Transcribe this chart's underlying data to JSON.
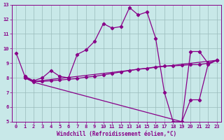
{
  "xlabel": "Windchill (Refroidissement éolien,°C)",
  "xlim": [
    -0.5,
    23.5
  ],
  "ylim": [
    5,
    13
  ],
  "xticks": [
    0,
    1,
    2,
    3,
    4,
    5,
    6,
    7,
    8,
    9,
    10,
    11,
    12,
    13,
    14,
    15,
    16,
    17,
    18,
    19,
    20,
    21,
    22,
    23
  ],
  "yticks": [
    5,
    6,
    7,
    8,
    9,
    10,
    11,
    12,
    13
  ],
  "bg_color": "#c8e8e8",
  "line_color": "#880088",
  "grid_color": "#99bbbb",
  "series": [
    {
      "x": [
        0,
        1,
        2,
        3,
        4,
        5,
        6,
        7,
        8,
        9,
        10,
        11,
        12,
        13,
        14,
        15,
        16,
        17,
        18,
        19,
        20,
        21,
        22,
        23
      ],
      "y": [
        9.7,
        8.1,
        7.8,
        8.0,
        8.5,
        8.1,
        8.0,
        9.6,
        9.9,
        10.5,
        11.7,
        11.4,
        11.5,
        12.8,
        12.3,
        12.5,
        10.7,
        7.0,
        5.0,
        5.0,
        9.8,
        9.8,
        9.0,
        9.2
      ]
    },
    {
      "x": [
        1,
        2,
        3,
        4,
        5,
        6,
        7,
        8,
        9,
        10,
        11,
        12,
        13,
        14,
        15,
        16,
        17,
        18,
        19,
        20,
        21,
        22,
        23
      ],
      "y": [
        8.1,
        7.75,
        7.75,
        7.8,
        7.85,
        7.9,
        7.95,
        8.05,
        8.1,
        8.2,
        8.3,
        8.4,
        8.5,
        8.6,
        8.65,
        8.75,
        8.8,
        8.82,
        8.85,
        8.9,
        8.9,
        9.0,
        9.2
      ]
    },
    {
      "x": [
        1,
        2,
        23
      ],
      "y": [
        8.0,
        7.75,
        9.2
      ]
    },
    {
      "x": [
        1,
        2,
        19,
        20,
        21,
        22,
        23
      ],
      "y": [
        8.0,
        7.7,
        5.0,
        6.5,
        6.5,
        8.9,
        9.2
      ]
    }
  ]
}
